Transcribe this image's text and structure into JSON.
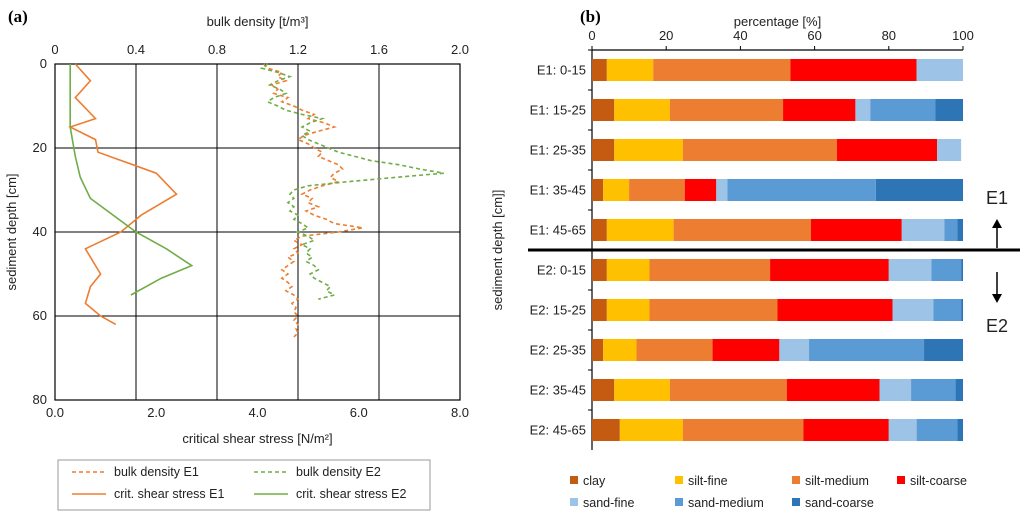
{
  "chart_data": [
    {
      "panel": "(a)",
      "type": "line",
      "top_axis_label": "bulk density [t/m³]",
      "bottom_axis_label": "critical shear stress [N/m²]",
      "ylabel": "sediment depth [cm]",
      "ylim": [
        0,
        80
      ],
      "y_ticks": [
        "0",
        "20",
        "40",
        "60",
        "80"
      ],
      "top_xlim": [
        0,
        2.0
      ],
      "top_ticks": [
        "0",
        "0.4",
        "0.8",
        "1.2",
        "1.6",
        "2.0"
      ],
      "bottom_xlim": [
        0,
        8.0
      ],
      "bottom_ticks": [
        "0.0",
        "2.0",
        "4.0",
        "6.0",
        "8.0"
      ],
      "grid": true,
      "series": [
        {
          "name": "bulk density E1",
          "axis": "top",
          "style": "dashed",
          "color": "#ED7D31",
          "points": [
            [
              1.03,
              0
            ],
            [
              1.05,
              1
            ],
            [
              1.12,
              2
            ],
            [
              1.1,
              3
            ],
            [
              1.14,
              4
            ],
            [
              1.07,
              5
            ],
            [
              1.1,
              6
            ],
            [
              1.08,
              7
            ],
            [
              1.15,
              8
            ],
            [
              1.12,
              9
            ],
            [
              1.18,
              10
            ],
            [
              1.22,
              11
            ],
            [
              1.28,
              12
            ],
            [
              1.25,
              13
            ],
            [
              1.33,
              14
            ],
            [
              1.38,
              15
            ],
            [
              1.3,
              16
            ],
            [
              1.23,
              17
            ],
            [
              1.2,
              18
            ],
            [
              1.25,
              19
            ],
            [
              1.28,
              20
            ],
            [
              1.32,
              21
            ],
            [
              1.3,
              22
            ],
            [
              1.35,
              23
            ],
            [
              1.4,
              24
            ],
            [
              1.42,
              25
            ],
            [
              1.38,
              26
            ],
            [
              1.36,
              27
            ],
            [
              1.4,
              28
            ],
            [
              1.32,
              29
            ],
            [
              1.26,
              30
            ],
            [
              1.22,
              31
            ],
            [
              1.27,
              32
            ],
            [
              1.25,
              33
            ],
            [
              1.3,
              34
            ],
            [
              1.24,
              35
            ],
            [
              1.28,
              36
            ],
            [
              1.34,
              37
            ],
            [
              1.38,
              38
            ],
            [
              1.52,
              39
            ],
            [
              1.4,
              40
            ],
            [
              1.22,
              41
            ],
            [
              1.18,
              42
            ],
            [
              1.22,
              43
            ],
            [
              1.18,
              44
            ],
            [
              1.2,
              45
            ],
            [
              1.15,
              46
            ],
            [
              1.18,
              47
            ],
            [
              1.15,
              48
            ],
            [
              1.12,
              49
            ],
            [
              1.15,
              50
            ],
            [
              1.12,
              51
            ],
            [
              1.15,
              52
            ],
            [
              1.17,
              53
            ],
            [
              1.14,
              54
            ],
            [
              1.18,
              55
            ],
            [
              1.2,
              56
            ],
            [
              1.17,
              57
            ],
            [
              1.19,
              58
            ],
            [
              1.18,
              59
            ],
            [
              1.2,
              60
            ],
            [
              1.18,
              61
            ],
            [
              1.2,
              62
            ],
            [
              1.19,
              63
            ],
            [
              1.2,
              64
            ],
            [
              1.18,
              65
            ]
          ]
        },
        {
          "name": "bulk density E2",
          "axis": "top",
          "style": "dashed",
          "color": "#70AD47",
          "points": [
            [
              1.05,
              0
            ],
            [
              1.02,
              1
            ],
            [
              1.1,
              2
            ],
            [
              1.16,
              3
            ],
            [
              1.1,
              4
            ],
            [
              1.06,
              5
            ],
            [
              1.11,
              6
            ],
            [
              1.14,
              7
            ],
            [
              1.08,
              8
            ],
            [
              1.05,
              9
            ],
            [
              1.1,
              10
            ],
            [
              1.14,
              11
            ],
            [
              1.22,
              12
            ],
            [
              1.32,
              13
            ],
            [
              1.26,
              14
            ],
            [
              1.22,
              15
            ],
            [
              1.26,
              16
            ],
            [
              1.22,
              17
            ],
            [
              1.25,
              18
            ],
            [
              1.3,
              19
            ],
            [
              1.35,
              20
            ],
            [
              1.4,
              21
            ],
            [
              1.48,
              22
            ],
            [
              1.56,
              23
            ],
            [
              1.7,
              24
            ],
            [
              1.8,
              25
            ],
            [
              1.92,
              26
            ],
            [
              1.68,
              27
            ],
            [
              1.45,
              28
            ],
            [
              1.25,
              29
            ],
            [
              1.18,
              30
            ],
            [
              1.16,
              31
            ],
            [
              1.18,
              32
            ],
            [
              1.15,
              33
            ],
            [
              1.18,
              34
            ],
            [
              1.16,
              35
            ],
            [
              1.2,
              36
            ],
            [
              1.18,
              37
            ],
            [
              1.22,
              38
            ],
            [
              1.25,
              39
            ],
            [
              1.2,
              40
            ],
            [
              1.25,
              41
            ],
            [
              1.28,
              42
            ],
            [
              1.22,
              43
            ],
            [
              1.26,
              44
            ],
            [
              1.24,
              45
            ],
            [
              1.27,
              46
            ],
            [
              1.24,
              47
            ],
            [
              1.28,
              48
            ],
            [
              1.3,
              49
            ],
            [
              1.26,
              50
            ],
            [
              1.28,
              51
            ],
            [
              1.32,
              52
            ],
            [
              1.36,
              53
            ],
            [
              1.34,
              54
            ],
            [
              1.38,
              55
            ],
            [
              1.3,
              56
            ]
          ]
        },
        {
          "name": "crit. shear stress E1",
          "axis": "bottom",
          "style": "solid",
          "color": "#ED7D31",
          "points": [
            [
              0.4,
              0
            ],
            [
              0.7,
              4
            ],
            [
              0.4,
              8
            ],
            [
              0.8,
              13
            ],
            [
              0.3,
              15
            ],
            [
              0.8,
              18
            ],
            [
              0.85,
              21
            ],
            [
              2.0,
              26
            ],
            [
              2.4,
              31
            ],
            [
              1.7,
              36
            ],
            [
              1.3,
              40
            ],
            [
              0.6,
              44
            ],
            [
              0.8,
              48
            ],
            [
              0.9,
              50
            ],
            [
              0.7,
              53
            ],
            [
              0.6,
              57
            ],
            [
              0.9,
              60
            ],
            [
              1.2,
              62
            ]
          ]
        },
        {
          "name": "crit. shear stress E2",
          "axis": "bottom",
          "style": "solid",
          "color": "#70AD47",
          "points": [
            [
              0.3,
              0
            ],
            [
              0.3,
              8
            ],
            [
              0.3,
              15
            ],
            [
              0.4,
              22
            ],
            [
              0.5,
              27
            ],
            [
              0.7,
              32
            ],
            [
              1.6,
              40
            ],
            [
              2.2,
              44
            ],
            [
              2.7,
              48
            ],
            [
              2.1,
              51
            ],
            [
              1.5,
              55
            ]
          ]
        }
      ],
      "legend_position": "bottom"
    },
    {
      "panel": "(b)",
      "type": "bar",
      "orientation": "horizontal",
      "stacked": true,
      "xlabel": "percentage [%]",
      "ylabel": "sediment depth [cm]]",
      "xlim": [
        0,
        100
      ],
      "x_ticks": [
        "0",
        "20",
        "40",
        "60",
        "80",
        "100"
      ],
      "categories": [
        "E1: 0-15",
        "E1: 15-25",
        "E1: 25-35",
        "E1: 35-45",
        "E1: 45-65",
        "E2: 0-15",
        "E2: 15-25",
        "E2: 25-35",
        "E2: 35-45",
        "E2: 45-65"
      ],
      "series": [
        {
          "name": "clay",
          "color": "#C55A11",
          "values": [
            4,
            6,
            6,
            3,
            4,
            4,
            4,
            3,
            6,
            7.5
          ]
        },
        {
          "name": "silt-fine",
          "color": "#FFC000",
          "values": [
            12.5,
            15,
            18.5,
            7,
            18,
            11.5,
            11.5,
            9,
            15,
            17
          ]
        },
        {
          "name": "silt-medium",
          "color": "#ED7D31",
          "values": [
            37,
            30.5,
            41.5,
            15,
            37,
            32.5,
            34.5,
            20.5,
            31.5,
            32.5
          ]
        },
        {
          "name": "silt-coarse",
          "color": "#FF0000",
          "values": [
            34,
            19.5,
            27,
            8.5,
            24.5,
            32,
            31,
            18,
            25,
            23
          ]
        },
        {
          "name": "sand-fine",
          "color": "#9DC3E6",
          "values": [
            12.5,
            4,
            6.5,
            3,
            11.5,
            11.5,
            11,
            8,
            8.5,
            7.5
          ]
        },
        {
          "name": "sand-medium",
          "color": "#5B9BD5",
          "values": [
            0,
            17.5,
            0,
            40,
            3.5,
            8,
            7.5,
            31,
            12,
            11
          ]
        },
        {
          "name": "sand-coarse",
          "color": "#2E75B6",
          "values": [
            0,
            7.5,
            0,
            23.5,
            1.5,
            0.5,
            0.5,
            10.5,
            2,
            1.5
          ]
        }
      ],
      "annotations": [
        "E1",
        "E2"
      ],
      "legend_position": "bottom"
    }
  ]
}
